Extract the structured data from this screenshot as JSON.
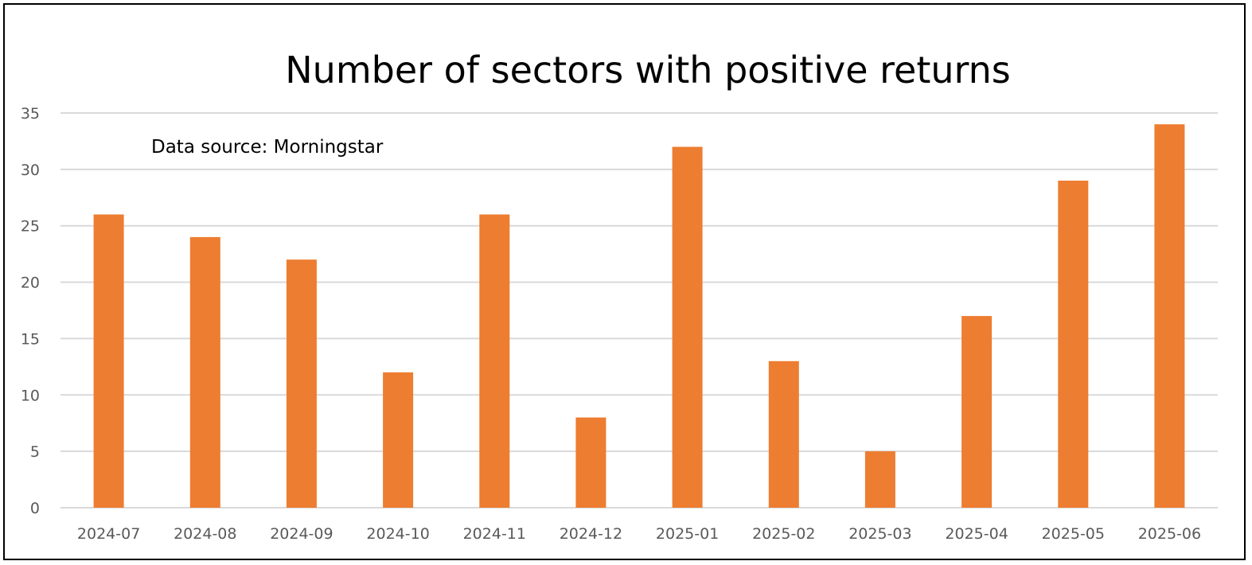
{
  "chart_data": {
    "type": "bar",
    "title": "Number of sectors with positive returns",
    "annotation": "Data source: Morningstar",
    "xlabel": "",
    "ylabel": "",
    "categories": [
      "2024-07",
      "2024-08",
      "2024-09",
      "2024-10",
      "2024-11",
      "2024-12",
      "2025-01",
      "2025-02",
      "2025-03",
      "2025-04",
      "2025-05",
      "2025-06"
    ],
    "values": [
      26,
      24,
      22,
      12,
      26,
      8,
      32,
      13,
      5,
      17,
      29,
      34
    ],
    "ylim": [
      0,
      35
    ],
    "yticks": [
      0,
      5,
      10,
      15,
      20,
      25,
      30,
      35
    ],
    "grid": true,
    "legend": "none",
    "bar_color": "#ED7D31",
    "grid_color": "#D9D9D9"
  }
}
